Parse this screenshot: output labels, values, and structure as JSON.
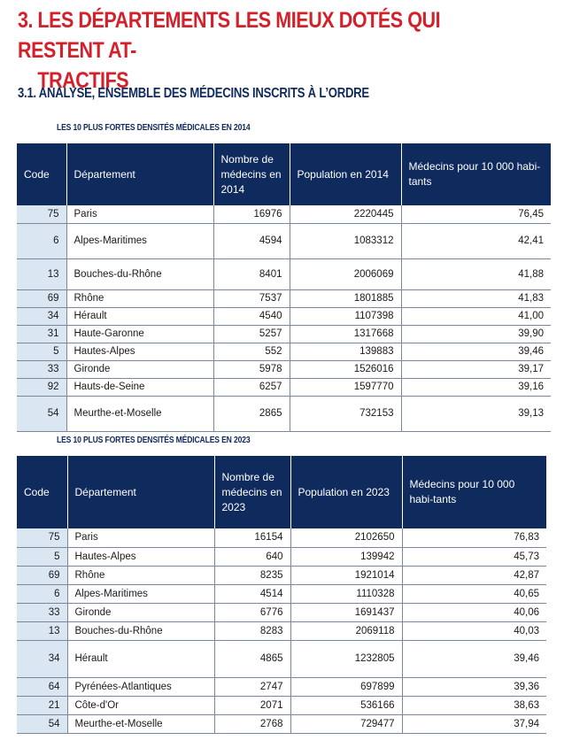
{
  "heading": {
    "number": "3.",
    "line1": "LES DÉPARTEMENTS LES MIEUX DOTÉS QUI RESTENT AT-",
    "line2": "TRACTIFS"
  },
  "subheading": "3.1.  ANALYSE, ENSEMBLE DES MÉDECINS INSCRITS À L’ORDRE",
  "table_2014": {
    "caption": "LES 10 PLUS FORTES DENSITÉS MÉDICALES EN 2014",
    "headers": [
      "Code",
      "Département",
      "Nombre de médecins en 2014",
      "Population en 2014",
      "Médecins pour 10 000 habi-tants"
    ],
    "rows": [
      [
        "75",
        "Paris",
        "16976",
        "2220445",
        "76,45"
      ],
      [
        "6",
        "Alpes-Maritimes",
        "4594",
        "1083312",
        "42,41"
      ],
      [
        "13",
        "Bouches-du-Rhône",
        "8401",
        "2006069",
        "41,88"
      ],
      [
        "69",
        "Rhône",
        "7537",
        "1801885",
        "41,83"
      ],
      [
        "34",
        "Hérault",
        "4540",
        "1107398",
        "41,00"
      ],
      [
        "31",
        "Haute-Garonne",
        "5257",
        "1317668",
        "39,90"
      ],
      [
        "5",
        "Hautes-Alpes",
        "552",
        "139883",
        "39,46"
      ],
      [
        "33",
        "Gironde",
        "5978",
        "1526016",
        "39,17"
      ],
      [
        "92",
        "Hauts-de-Seine",
        "6257",
        "1597770",
        "39,16"
      ],
      [
        "54",
        "Meurthe-et-Moselle",
        "2865",
        "732153",
        "39,13"
      ]
    ]
  },
  "table_2023": {
    "caption": "LES 10 PLUS FORTES DENSITÉS MÉDICALES EN 2023",
    "headers": [
      "Code",
      "Département",
      "Nombre de médecins en 2023",
      "Population en 2023",
      "Médecins pour 10 000 habi-tants"
    ],
    "rows": [
      [
        "75",
        "Paris",
        "16154",
        "2102650",
        "76,83"
      ],
      [
        "5",
        "Hautes-Alpes",
        "640",
        "139942",
        "45,73"
      ],
      [
        "69",
        "Rhône",
        "8235",
        "1921014",
        "42,87"
      ],
      [
        "6",
        "Alpes-Maritimes",
        "4514",
        "1110328",
        "40,65"
      ],
      [
        "33",
        "Gironde",
        "6776",
        "1691437",
        "40,06"
      ],
      [
        "13",
        "Bouches-du-Rhône",
        "8283",
        "2069118",
        "40,03"
      ],
      [
        "34",
        "Hérault",
        "4865",
        "1232805",
        "39,46"
      ],
      [
        "64",
        "Pyrénées-Atlantiques",
        "2747",
        "697899",
        "39,36"
      ],
      [
        "21",
        "Côte-d'Or",
        "2071",
        "536166",
        "38,63"
      ],
      [
        "54",
        "Meurthe-et-Moselle",
        "2768",
        "729477",
        "37,94"
      ]
    ]
  }
}
